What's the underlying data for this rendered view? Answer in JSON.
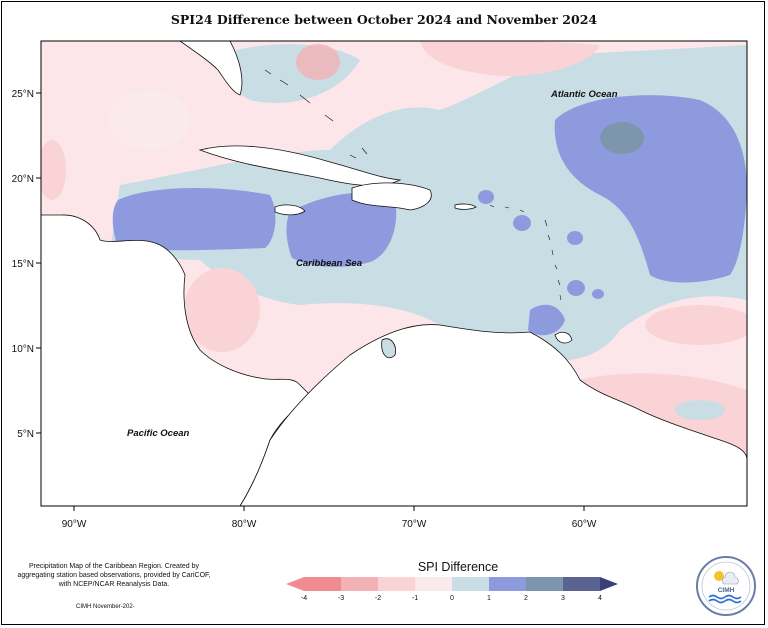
{
  "title": "SPI24 Difference between October 2024 and November 2024",
  "map": {
    "labels": {
      "atlantic": "Atlantic Ocean",
      "caribbean": "Caribbean Sea",
      "pacific": "Pacific Ocean"
    },
    "lat_ticks": [
      "25°N",
      "20°N",
      "15°N",
      "10°N",
      "5°N"
    ],
    "lon_ticks": [
      "90°W",
      "80°W",
      "70°W",
      "60°W"
    ],
    "extent": {
      "lon": [
        -92,
        -50
      ],
      "lat": [
        0.7,
        27.7
      ]
    }
  },
  "legend": {
    "title": "SPI Difference",
    "tick_labels": [
      "-4",
      "-3",
      "-2",
      "-1",
      "0",
      "1",
      "2",
      "3",
      "4"
    ],
    "colors": [
      "#f28a92",
      "#f3b2b5",
      "#f9d3d6",
      "#fbeaec",
      "#c9dde4",
      "#8d9bde",
      "#7d96ad",
      "#5b6490"
    ]
  },
  "notes": {
    "description": "Precipitation Map of the Caribbean Region. Created by aggregating station based observations, provided by CariCOF, with NCEP/NCAR Reanalysis Data.",
    "footer": "CIMH November-202-"
  },
  "logo": {
    "text": "CIMH",
    "icon": "sun-cloud-rain-waves-icon"
  }
}
